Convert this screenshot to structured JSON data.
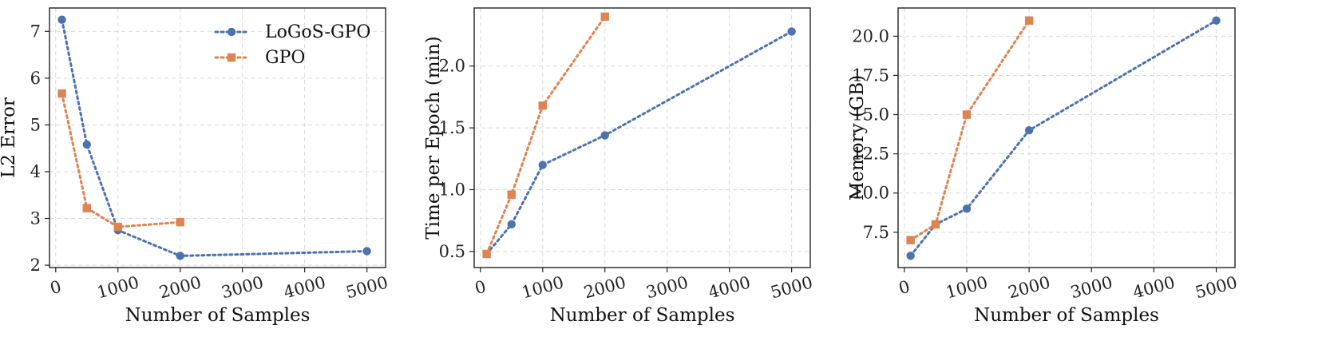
{
  "colors": {
    "logos_gpo": "#4C72B0",
    "gpo": "#DD8452"
  },
  "legend": {
    "location": "top-right",
    "items": [
      "LoGoS-GPO",
      "GPO"
    ]
  },
  "chart_data": [
    {
      "type": "line",
      "title": "",
      "xlabel": "Number of Samples",
      "ylabel": "L2 Error",
      "xlim": [
        -100,
        5300
      ],
      "ylim": [
        1.95,
        7.5
      ],
      "xticks": [
        0,
        1000,
        2000,
        3000,
        4000,
        5000
      ],
      "yticks": [
        2,
        3,
        4,
        5,
        6,
        7
      ],
      "ytick_labels": [
        "2",
        "3",
        "4",
        "5",
        "6",
        "7"
      ],
      "grid": true,
      "series": [
        {
          "name": "LoGoS-GPO",
          "marker": "circle",
          "x": [
            100,
            500,
            1000,
            2000,
            5000
          ],
          "y": [
            7.25,
            4.58,
            2.75,
            2.2,
            2.3
          ]
        },
        {
          "name": "GPO",
          "marker": "square",
          "x": [
            100,
            500,
            1000,
            2000
          ],
          "y": [
            5.67,
            3.22,
            2.82,
            2.92
          ]
        }
      ]
    },
    {
      "type": "line",
      "title": "",
      "xlabel": "Number of Samples",
      "ylabel": "Time per Epoch (min)",
      "xlim": [
        -100,
        5300
      ],
      "ylim": [
        0.37,
        2.47
      ],
      "xticks": [
        0,
        1000,
        2000,
        3000,
        4000,
        5000
      ],
      "yticks": [
        0.5,
        1.0,
        1.5,
        2.0
      ],
      "ytick_labels": [
        "0.5",
        "1.0",
        "1.5",
        "2.0"
      ],
      "grid": true,
      "series": [
        {
          "name": "LoGoS-GPO",
          "marker": "circle",
          "x": [
            100,
            500,
            1000,
            2000,
            5000
          ],
          "y": [
            0.48,
            0.72,
            1.2,
            1.44,
            2.28
          ]
        },
        {
          "name": "GPO",
          "marker": "square",
          "x": [
            100,
            500,
            1000,
            2000
          ],
          "y": [
            0.48,
            0.96,
            1.68,
            2.4
          ]
        }
      ]
    },
    {
      "type": "line",
      "title": "",
      "xlabel": "Number of Samples",
      "ylabel": "Memory (GB)",
      "xlim": [
        -100,
        5300
      ],
      "ylim": [
        5.25,
        21.8
      ],
      "xticks": [
        0,
        1000,
        2000,
        3000,
        4000,
        5000
      ],
      "yticks": [
        7.5,
        10.0,
        12.5,
        15.0,
        17.5,
        20.0
      ],
      "ytick_labels": [
        "7.5",
        "10.0",
        "12.5",
        "15.0",
        "17.5",
        "20.0"
      ],
      "grid": true,
      "series": [
        {
          "name": "LoGoS-GPO",
          "marker": "circle",
          "x": [
            100,
            500,
            1000,
            2000,
            5000
          ],
          "y": [
            6.0,
            8.0,
            9.0,
            14.0,
            21.0
          ]
        },
        {
          "name": "GPO",
          "marker": "square",
          "x": [
            100,
            500,
            1000,
            2000
          ],
          "y": [
            7.0,
            8.0,
            15.0,
            21.0
          ]
        }
      ]
    }
  ]
}
